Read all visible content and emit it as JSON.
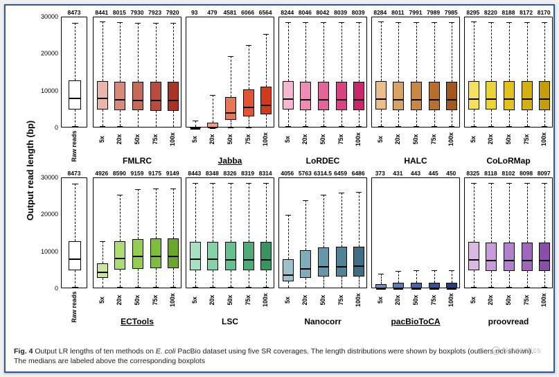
{
  "figure": {
    "ylabel": "Output read length (bp)",
    "ylim": [
      0,
      30000
    ],
    "yticks": [
      0,
      10000,
      20000,
      30000
    ],
    "xtick_labels": [
      "5x",
      "20x",
      "50x",
      "75x",
      "100x"
    ],
    "raw_label": "Raw reads",
    "raw_median_label": "8473",
    "raw_box": {
      "q1": 5000,
      "med": 8473,
      "q3": 13000,
      "lo": 500,
      "hi": 28500
    },
    "caption_html": "<b>Fig. 4</b> Output LR lengths of ten methods on <i>E. coli</i> PacBio dataset using five SR coverages. The length distributions were shown by boxplots (outliers not shown). The medians are labeled above the corresponding boxplots",
    "watermark": "Nextomics"
  },
  "colors": {
    "raw": [
      "#ffffff"
    ],
    "FMLRC": [
      "#e8b6ad",
      "#d9897b",
      "#c86a5a",
      "#b84d3d",
      "#a93425"
    ],
    "Jabba": [
      "#f6c7b6",
      "#ef9d80",
      "#e87653",
      "#df5634",
      "#d13a1a"
    ],
    "LoRDEC": [
      "#f6b7d2",
      "#ee8cb5",
      "#e4639b",
      "#d94383",
      "#c9276b"
    ],
    "HALC": [
      "#e9c08d",
      "#d9a463",
      "#c98844",
      "#b86f2c",
      "#a3581b"
    ],
    "CoLoRMap": [
      "#f3e15f",
      "#ebd33a",
      "#e1c31f",
      "#d4b10f",
      "#c59e06"
    ],
    "ECTools": [
      "#c9e79c",
      "#aedb75",
      "#94cd54",
      "#7ebc3b",
      "#69a828"
    ],
    "LSC": [
      "#a9dfc2",
      "#86d0a8",
      "#66bf8f",
      "#4cab78",
      "#379562"
    ],
    "Nanocorr": [
      "#9cc0cc",
      "#7fabba",
      "#6697a9",
      "#518295",
      "#3e6e82"
    ],
    "pacBioToCA": [
      "#6f8fc4",
      "#5a7bb8",
      "#4666a9",
      "#345297",
      "#243f82"
    ],
    "proovread": [
      "#d9b9e4",
      "#c79cd9",
      "#b380cc",
      "#9f66bd",
      "#8a4dab"
    ]
  },
  "panels": [
    {
      "row": 1,
      "name": "FMLRC",
      "underline": false,
      "medians": [
        8441,
        8015,
        7930,
        7923,
        7920
      ],
      "boxes": [
        {
          "q1": 5000,
          "med": 8441,
          "q3": 12800,
          "lo": 500,
          "hi": 28800
        },
        {
          "q1": 4800,
          "med": 8015,
          "q3": 12600,
          "lo": 500,
          "hi": 28600
        },
        {
          "q1": 4800,
          "med": 7930,
          "q3": 12500,
          "lo": 400,
          "hi": 28500
        },
        {
          "q1": 4700,
          "med": 7923,
          "q3": 12500,
          "lo": 400,
          "hi": 28500
        },
        {
          "q1": 4700,
          "med": 7920,
          "q3": 12500,
          "lo": 400,
          "hi": 28500
        }
      ]
    },
    {
      "row": 1,
      "name": "Jabba",
      "underline": true,
      "medians": [
        93,
        479,
        4581,
        6066,
        6564
      ],
      "boxes": [
        {
          "q1": 50,
          "med": 93,
          "q3": 400,
          "lo": 30,
          "hi": 2000
        },
        {
          "q1": 150,
          "med": 479,
          "q3": 1500,
          "lo": 60,
          "hi": 9000
        },
        {
          "q1": 2200,
          "med": 4581,
          "q3": 8500,
          "lo": 200,
          "hi": 19500
        },
        {
          "q1": 3200,
          "med": 6066,
          "q3": 10500,
          "lo": 250,
          "hi": 22500
        },
        {
          "q1": 3700,
          "med": 6564,
          "q3": 11200,
          "lo": 300,
          "hi": 25500
        }
      ]
    },
    {
      "row": 1,
      "name": "LoRDEC",
      "underline": false,
      "medians": [
        8244,
        8046,
        8042,
        8039,
        8039
      ],
      "boxes": [
        {
          "q1": 5000,
          "med": 8244,
          "q3": 12700,
          "lo": 500,
          "hi": 28700
        },
        {
          "q1": 4900,
          "med": 8046,
          "q3": 12600,
          "lo": 500,
          "hi": 28600
        },
        {
          "q1": 4800,
          "med": 8042,
          "q3": 12600,
          "lo": 500,
          "hi": 28600
        },
        {
          "q1": 4800,
          "med": 8039,
          "q3": 12600,
          "lo": 500,
          "hi": 28600
        },
        {
          "q1": 4800,
          "med": 8039,
          "q3": 12600,
          "lo": 500,
          "hi": 28600
        }
      ]
    },
    {
      "row": 1,
      "name": "HALC",
      "underline": false,
      "medians": [
        8284,
        8011,
        7991,
        7989,
        7985
      ],
      "boxes": [
        {
          "q1": 5000,
          "med": 8284,
          "q3": 12800,
          "lo": 500,
          "hi": 28800
        },
        {
          "q1": 4900,
          "med": 8011,
          "q3": 12600,
          "lo": 500,
          "hi": 28600
        },
        {
          "q1": 4800,
          "med": 7991,
          "q3": 12600,
          "lo": 500,
          "hi": 28600
        },
        {
          "q1": 4800,
          "med": 7989,
          "q3": 12600,
          "lo": 500,
          "hi": 28600
        },
        {
          "q1": 4800,
          "med": 7985,
          "q3": 12600,
          "lo": 500,
          "hi": 28600
        }
      ]
    },
    {
      "row": 1,
      "name": "CoLoRMap",
      "underline": false,
      "medians": [
        8295,
        8220,
        8188,
        8172,
        8170
      ],
      "boxes": [
        {
          "q1": 5000,
          "med": 8295,
          "q3": 12800,
          "lo": 500,
          "hi": 28800
        },
        {
          "q1": 5000,
          "med": 8220,
          "q3": 12700,
          "lo": 500,
          "hi": 28700
        },
        {
          "q1": 4900,
          "med": 8188,
          "q3": 12700,
          "lo": 500,
          "hi": 28700
        },
        {
          "q1": 4900,
          "med": 8172,
          "q3": 12700,
          "lo": 500,
          "hi": 28700
        },
        {
          "q1": 4900,
          "med": 8170,
          "q3": 12700,
          "lo": 500,
          "hi": 28700
        }
      ]
    },
    {
      "row": 2,
      "name": "ECTools",
      "underline": true,
      "medians": [
        4926,
        8590,
        9159,
        9175,
        9149
      ],
      "boxes": [
        {
          "q1": 3000,
          "med": 4926,
          "q3": 7000,
          "lo": 400,
          "hi": 13000
        },
        {
          "q1": 5200,
          "med": 8590,
          "q3": 13000,
          "lo": 500,
          "hi": 25500
        },
        {
          "q1": 5500,
          "med": 9159,
          "q3": 13500,
          "lo": 500,
          "hi": 27000
        },
        {
          "q1": 5600,
          "med": 9175,
          "q3": 13600,
          "lo": 500,
          "hi": 27200
        },
        {
          "q1": 5600,
          "med": 9149,
          "q3": 13600,
          "lo": 500,
          "hi": 27200
        }
      ]
    },
    {
      "row": 2,
      "name": "LSC",
      "underline": false,
      "medians": [
        8443,
        8348,
        8326,
        8319,
        8314
      ],
      "boxes": [
        {
          "q1": 5000,
          "med": 8443,
          "q3": 12800,
          "lo": 500,
          "hi": 28700
        },
        {
          "q1": 5000,
          "med": 8348,
          "q3": 12700,
          "lo": 500,
          "hi": 28600
        },
        {
          "q1": 5000,
          "med": 8326,
          "q3": 12700,
          "lo": 500,
          "hi": 28600
        },
        {
          "q1": 5000,
          "med": 8319,
          "q3": 12700,
          "lo": 500,
          "hi": 28600
        },
        {
          "q1": 5000,
          "med": 8314,
          "q3": 12700,
          "lo": 500,
          "hi": 28600
        }
      ]
    },
    {
      "row": 2,
      "name": "Nanocorr",
      "underline": false,
      "medians": [
        4056,
        5763,
        6314.5,
        6459,
        6486
      ],
      "boxes": [
        {
          "q1": 2000,
          "med": 4056,
          "q3": 8000,
          "lo": 300,
          "hi": 20000
        },
        {
          "q1": 3000,
          "med": 5763,
          "q3": 10500,
          "lo": 400,
          "hi": 24000
        },
        {
          "q1": 3300,
          "med": 6314,
          "q3": 11200,
          "lo": 400,
          "hi": 25500
        },
        {
          "q1": 3400,
          "med": 6459,
          "q3": 11400,
          "lo": 400,
          "hi": 26000
        },
        {
          "q1": 3400,
          "med": 6486,
          "q3": 11500,
          "lo": 400,
          "hi": 26200
        }
      ]
    },
    {
      "row": 2,
      "name": "pacBioToCA",
      "underline": true,
      "medians": [
        373,
        431,
        443,
        445,
        450
      ],
      "boxes": [
        {
          "q1": 180,
          "med": 373,
          "q3": 1400,
          "lo": 80,
          "hi": 4200
        },
        {
          "q1": 200,
          "med": 431,
          "q3": 1600,
          "lo": 90,
          "hi": 4800
        },
        {
          "q1": 210,
          "med": 443,
          "q3": 1700,
          "lo": 90,
          "hi": 5000
        },
        {
          "q1": 210,
          "med": 445,
          "q3": 1700,
          "lo": 90,
          "hi": 5000
        },
        {
          "q1": 210,
          "med": 450,
          "q3": 1700,
          "lo": 90,
          "hi": 5000
        }
      ]
    },
    {
      "row": 2,
      "name": "proovread",
      "underline": false,
      "medians": [
        8325,
        8118,
        8102,
        8098,
        8097
      ],
      "boxes": [
        {
          "q1": 5000,
          "med": 8325,
          "q3": 12800,
          "lo": 500,
          "hi": 28700
        },
        {
          "q1": 4900,
          "med": 8118,
          "q3": 12600,
          "lo": 500,
          "hi": 28600
        },
        {
          "q1": 4900,
          "med": 8102,
          "q3": 12600,
          "lo": 500,
          "hi": 28600
        },
        {
          "q1": 4900,
          "med": 8098,
          "q3": 12600,
          "lo": 500,
          "hi": 28600
        },
        {
          "q1": 4900,
          "med": 8097,
          "q3": 12600,
          "lo": 500,
          "hi": 28600
        }
      ]
    }
  ]
}
